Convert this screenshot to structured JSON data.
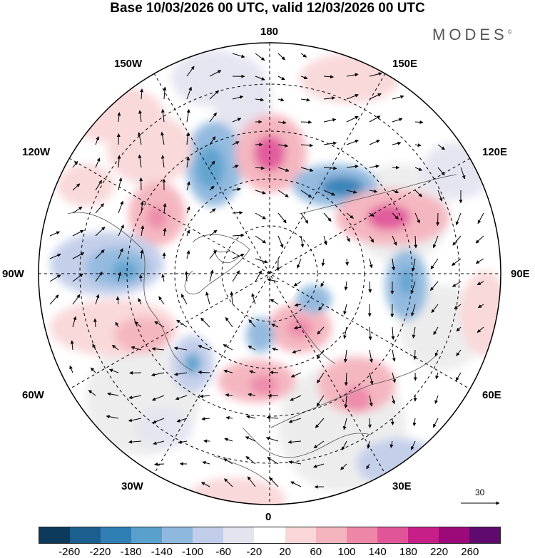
{
  "title": "Base 10/03/2026 00 UTC, valid 12/03/2026 00 UTC",
  "brand": "MODES",
  "brand_mark": "©",
  "longitude_labels": {
    "top": "180",
    "w150": "150W",
    "e150": "150E",
    "w120": "120W",
    "e120": "120E",
    "w90": "90W",
    "e90": "90E",
    "w60": "60W",
    "e60": "60E",
    "w30": "30W",
    "e30": "30E",
    "bottom": "0"
  },
  "vector_scale_label": "30",
  "colorbar": {
    "colors": [
      "#0c3a5c",
      "#1a5f8e",
      "#2f7fb5",
      "#5aa0cd",
      "#8fb8de",
      "#c1cde9",
      "#e4e4f1",
      "#ffffff",
      "#f9d7d8",
      "#f4b4bd",
      "#ee86a8",
      "#e05598",
      "#c61f87",
      "#9c0a7a",
      "#5e0a6e"
    ],
    "ticks": [
      "-260",
      "-220",
      "-180",
      "-140",
      "-100",
      "-60",
      "-20",
      "20",
      "60",
      "100",
      "140",
      "180",
      "220",
      "260"
    ]
  }
}
